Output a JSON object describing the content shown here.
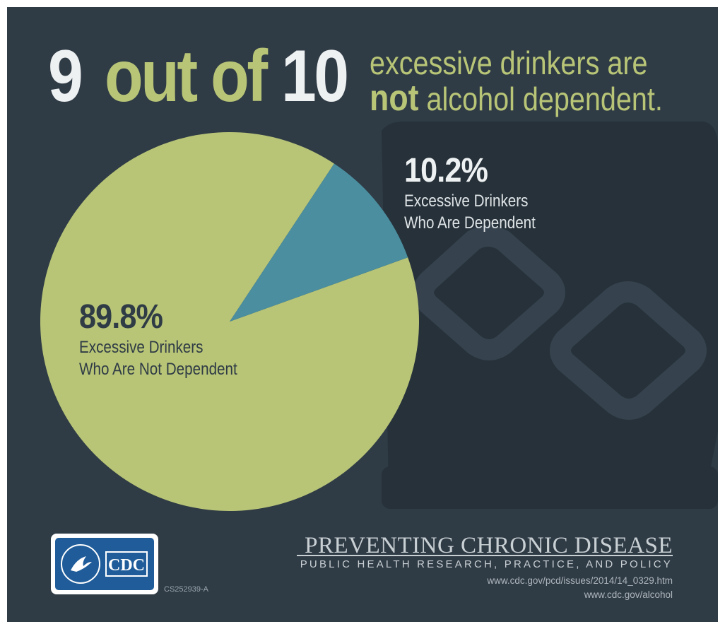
{
  "headline": {
    "nine": "9",
    "out_of": "out of",
    "ten": "10",
    "line1": "excessive drinkers are",
    "line2_bold": "not",
    "line2_rest": " alcohol dependent."
  },
  "chart_data": {
    "type": "pie",
    "slices": [
      {
        "value": 89.8,
        "label": "89.8%",
        "description_line1": "Excessive Drinkers",
        "description_line2": "Who Are Not Dependent",
        "color": "#b8c577"
      },
      {
        "value": 10.2,
        "label": "10.2%",
        "description_line1": "Excessive Drinkers",
        "description_line2": "Who Are Dependent",
        "color": "#4a8e9f"
      }
    ]
  },
  "logo": {
    "text": "CDC",
    "code": "CS252939-A"
  },
  "publication": {
    "title": "PREVENTING CHRONIC DISEASE",
    "tagline": "PUBLIC HEALTH RESEARCH, PRACTICE, AND POLICY",
    "url1": "www.cdc.gov/pcd/issues/2014/14_0329.htm",
    "url2": "www.cdc.gov/alcohol"
  },
  "colors": {
    "background": "#2f3b45",
    "accent_green": "#b8c577",
    "accent_teal": "#4a8e9f",
    "white": "#eef1f2"
  }
}
